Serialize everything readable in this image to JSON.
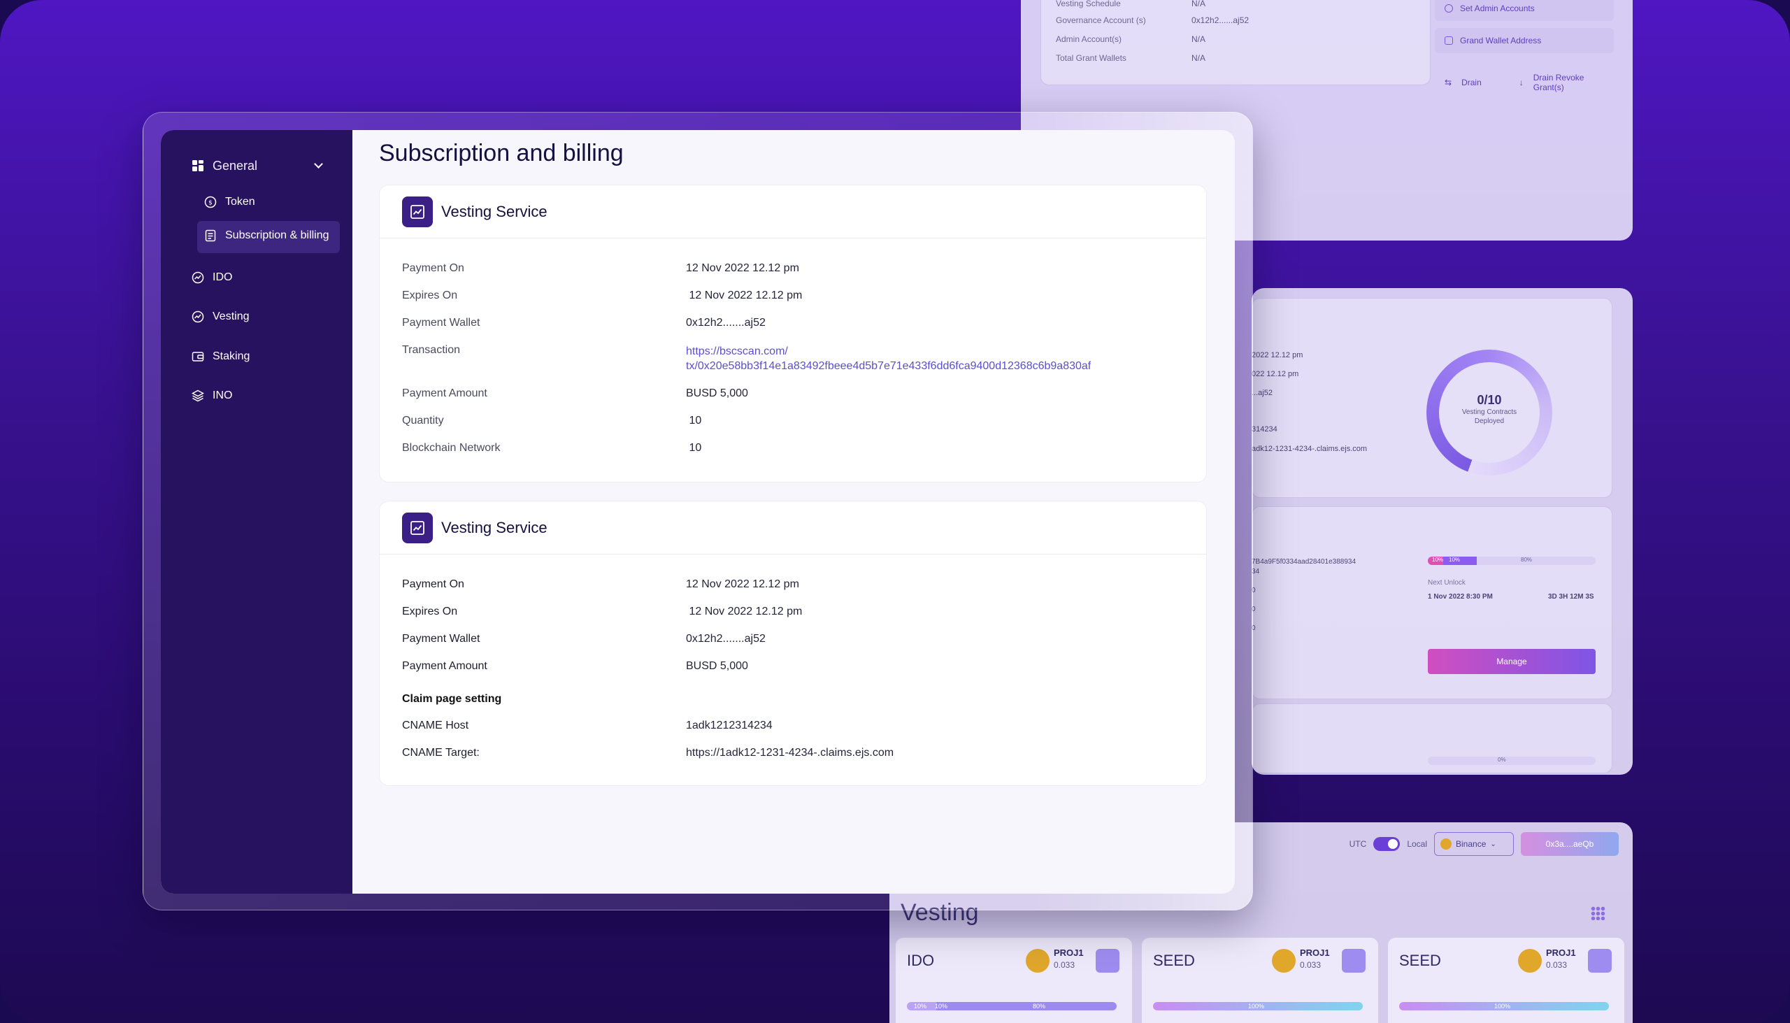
{
  "bg_top": {
    "rows": [
      {
        "label": "Vesting Schedule",
        "value": "N/A"
      },
      {
        "label": "Governance Account (s)",
        "value": "0x12h2......aj52"
      },
      {
        "label": "Admin Account(s)",
        "value": "N/A"
      },
      {
        "label": "Total Grant Wallets",
        "value": "N/A"
      }
    ],
    "buttons": {
      "set_admin": "Set Admin Accounts",
      "grand_wallet": "Grand Wallet Address",
      "drain": "Drain",
      "drain_revoke": "Drain Revoke Grant(s)"
    }
  },
  "bg_mid": {
    "lines": [
      "2022 12.12 pm",
      "022 12.12 pm",
      "...aj52",
      "314234",
      "adk12-1231-4234-.claims.ejs.com"
    ],
    "donut_value": "0/10",
    "donut_caption_1": "Vesting Contracts",
    "donut_caption_2": "Deployed",
    "hash_line_1": "7B4a9F5f0334aad28401e388934",
    "hash_line_2": "34",
    "bar_labels": [
      "10%",
      "10%",
      "80%"
    ],
    "next_unlock_label": "Next Unlock",
    "next_unlock_date": "1 Nov 2022 8:30 PM",
    "countdown": "3D 3H 12M 3S",
    "manage": "Manage",
    "bar2_label": "0%"
  },
  "bg_bot": {
    "utc": "UTC",
    "local": "Local",
    "chain": "Binance",
    "wallet": "0x3a....aeQb",
    "title": "Vesting",
    "cards": [
      {
        "name": "IDO",
        "token": "PROJ1",
        "amount": "0.033",
        "bar": [
          "10%",
          "10%",
          "80%"
        ]
      },
      {
        "name": "SEED",
        "token": "PROJ1",
        "amount": "0.033",
        "bar": [
          "100%"
        ]
      },
      {
        "name": "SEED",
        "token": "PROJ1",
        "amount": "0.033",
        "bar": [
          "100%"
        ]
      }
    ]
  },
  "sidebar": {
    "group": "General",
    "items": [
      {
        "label": "Token"
      },
      {
        "label": "Subscription & billing"
      },
      {
        "label": "IDO"
      },
      {
        "label": "Vesting"
      },
      {
        "label": "Staking"
      },
      {
        "label": "INO"
      }
    ]
  },
  "page": {
    "title": "Subscription and billing"
  },
  "card1": {
    "title": "Vesting Service",
    "rows": [
      {
        "label": "Payment On",
        "value": "12 Nov 2022 12.12 pm"
      },
      {
        "label": "Expires On",
        "value": " 12 Nov 2022 12.12 pm"
      },
      {
        "label": "Payment Wallet",
        "value": "0x12h2.......aj52"
      },
      {
        "label": "Transaction",
        "value_line1": "https://bscscan.com/",
        "value_line2": "tx/0x20e58bb3f14e1a83492fbeee4d5b7e71e433f6dd6fca9400d12368c6b9a830af"
      },
      {
        "label": "Payment Amount",
        "value": "BUSD 5,000"
      },
      {
        "label": "Quantity",
        "value": " 10"
      },
      {
        "label": "Blockchain Network",
        "value": " 10"
      }
    ]
  },
  "card2": {
    "title": "Vesting Service",
    "rows": [
      {
        "label": "Payment On",
        "value": "12 Nov 2022 12.12 pm"
      },
      {
        "label": "Expires On",
        "value": " 12 Nov 2022 12.12 pm"
      },
      {
        "label": "Payment Wallet",
        "value": "0x12h2.......aj52"
      },
      {
        "label": "Payment Amount",
        "value": "BUSD 5,000"
      }
    ],
    "claim_heading": "Claim page setting",
    "claim_rows": [
      {
        "label": "CNAME Host",
        "value": "1adk1212314234"
      },
      {
        "label": "CNAME Target:",
        "value": "https://1adk12-1231-4234-.claims.ejs.com"
      }
    ]
  }
}
